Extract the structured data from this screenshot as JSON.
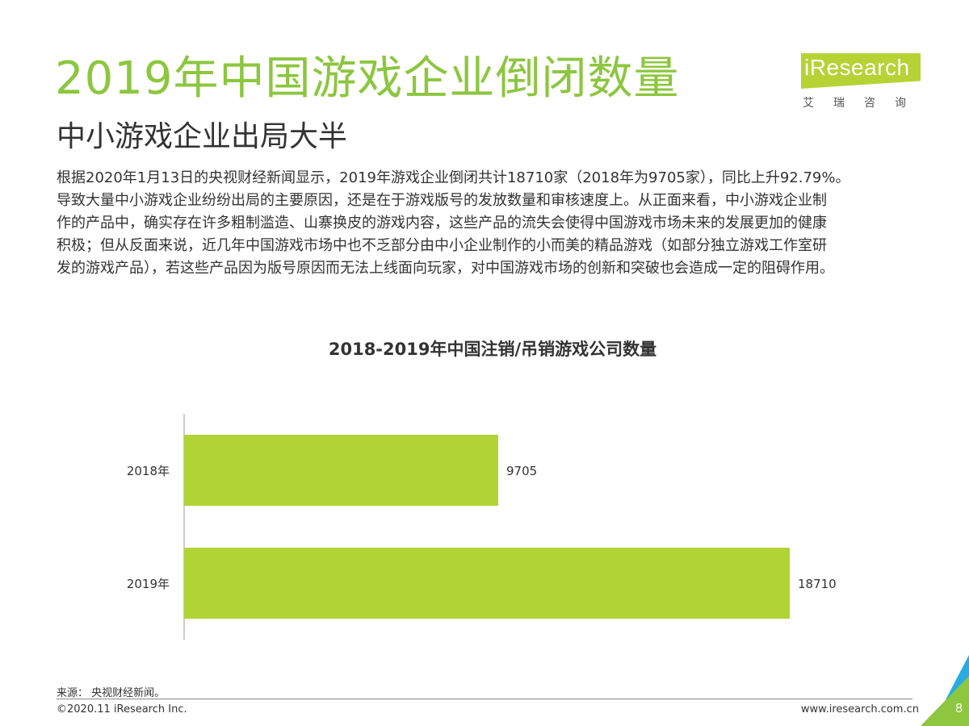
{
  "header": {
    "title": "2019年中国游戏企业倒闭数量",
    "subtitle": "中小游戏企业出局大半"
  },
  "logo": {
    "name": "iResearch",
    "cn": "艾瑞咨询"
  },
  "body": {
    "lines": [
      "根据2020年1月13日的央视财经新闻显示，2019年游戏企业倒闭共计18710家（2018年为9705家），同比上升92.79%。",
      "导致大量中小游戏企业纷纷出局的主要原因，还是在于游戏版号的发放数量和审核速度上。从正面来看，中小游戏企业制",
      "作的产品中，确实存在许多粗制滥造、山寨换皮的游戏内容，这些产品的流失会使得中国游戏市场未来的发展更加的健康",
      "积极；但从反面来说，近几年中国游戏市场中也不乏部分由中小企业制作的小而美的精品游戏（如部分独立游戏工作室研",
      "发的游戏产品），若这些产品因为版号原因而无法上线面向玩家，对中国游戏市场的创新和突破也会造成一定的阻碍作用。"
    ]
  },
  "chart_data": {
    "type": "bar",
    "orientation": "horizontal",
    "title": "2018-2019年中国注销/吊销游戏公司数量",
    "categories": [
      "2018年",
      "2019年"
    ],
    "values": [
      9705,
      18710
    ],
    "xlim": [
      0,
      18710
    ],
    "grid": false,
    "color": "#b0d336"
  },
  "footer": {
    "source": "来源：  央视财经新闻。",
    "copyright": "©2020.11 iResearch Inc.",
    "website": "www.iresearch.com.cn",
    "page": "8"
  },
  "colors": {
    "accent": "#8dc63f",
    "bar": "#b0d336",
    "corner_green": "#8dc63f",
    "corner_blue": "#29abe2"
  }
}
